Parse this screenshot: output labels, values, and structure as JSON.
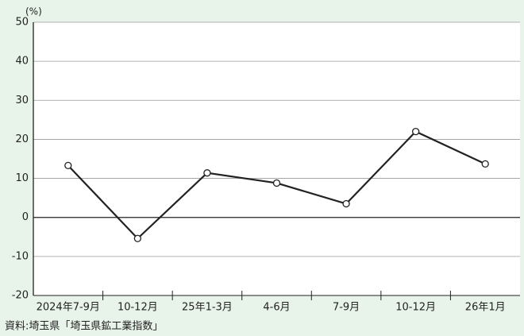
{
  "chart_data": {
    "type": "line",
    "unit_label": "(%)",
    "categories": [
      "2024年7-9月",
      "10-12月",
      "25年1-3月",
      "4-6月",
      "7-9月",
      "10-12月",
      "26年1月"
    ],
    "values": [
      13.3,
      -5.4,
      11.4,
      8.8,
      3.5,
      22.0,
      13.7
    ],
    "color": "#222222",
    "ylim": [
      -20,
      50
    ],
    "yticks": [
      -20,
      -10,
      0,
      10,
      20,
      30,
      40,
      50
    ],
    "grid": true,
    "source": "資料:埼玉県「埼玉県鉱工業指数」"
  }
}
